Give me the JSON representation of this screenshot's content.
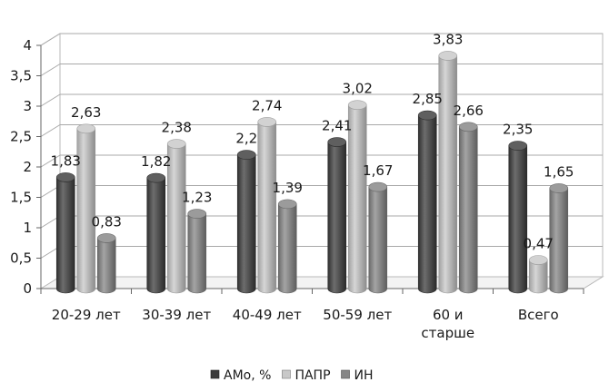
{
  "chart_data": {
    "type": "bar",
    "categories": [
      "20-29 лет",
      "30-39 лет",
      "40-49 лет",
      "50-59 лет",
      "60 и\nстарше",
      "Всего"
    ],
    "series": [
      {
        "name": "АМо, %",
        "values": [
          1.83,
          1.82,
          2.2,
          2.41,
          2.85,
          2.35
        ],
        "labels": [
          "1,83",
          "1,82",
          "2,2",
          "2,41",
          "2,85",
          "2,35"
        ],
        "color": "#3c3c3c"
      },
      {
        "name": "ПАПР",
        "values": [
          2.63,
          2.38,
          2.74,
          3.02,
          3.83,
          0.47
        ],
        "labels": [
          "2,63",
          "2,38",
          "2,74",
          "3,02",
          "3,83",
          "0,47"
        ],
        "color": "#c8c8c8"
      },
      {
        "name": "ИН",
        "values": [
          0.83,
          1.23,
          1.39,
          1.67,
          2.66,
          1.65
        ],
        "labels": [
          "0,83",
          "1,23",
          "1,39",
          "1,67",
          "2,66",
          "1,65"
        ],
        "color": "#858585"
      }
    ],
    "yticks": [
      "0",
      "0,5",
      "1",
      "1,5",
      "2",
      "2,5",
      "3",
      "3,5",
      "4"
    ],
    "ylim": [
      0,
      4
    ],
    "grid": true,
    "legend_position": "bottom",
    "style": "3d-columns"
  }
}
